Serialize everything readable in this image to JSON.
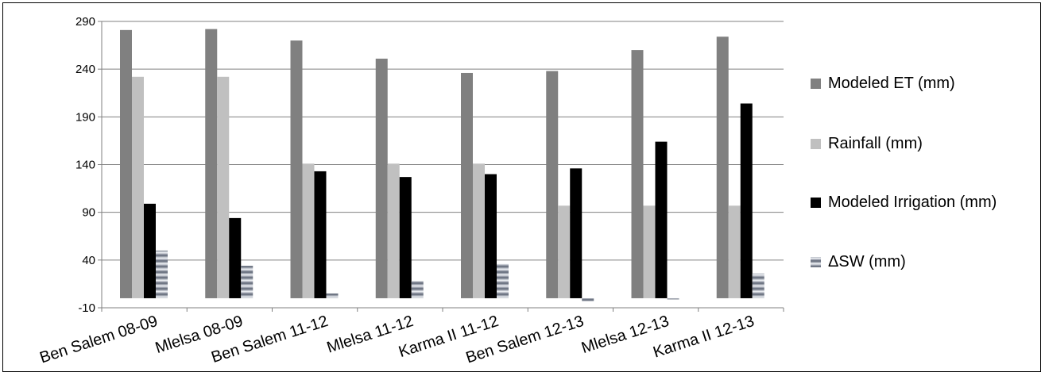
{
  "chart_data": {
    "type": "bar",
    "categories": [
      "Ben Salem 08-09",
      "Mlelsa 08-09",
      "Ben Salem 11-12",
      "Mlelsa 11-12",
      "Karma II 11-12",
      "Ben Salem 12-13",
      "Mlelsa 12-13",
      "Karma II 12-13"
    ],
    "series": [
      {
        "name": "Modeled ET (mm)",
        "color": "#808080",
        "values": [
          281,
          282,
          270,
          251,
          236,
          238,
          260,
          274
        ]
      },
      {
        "name": "Rainfall (mm)",
        "color": "#c0c0c0",
        "values": [
          232,
          232,
          141,
          141,
          141,
          97,
          97,
          97
        ]
      },
      {
        "name": "Modeled Irrigation (mm)",
        "color": "#000000",
        "values": [
          99,
          84,
          133,
          127,
          130,
          136,
          164,
          204
        ]
      },
      {
        "name": "ΔSW (mm)",
        "color": "#8890a0",
        "values": [
          50,
          34,
          5,
          18,
          36,
          -3,
          -1,
          26
        ]
      }
    ],
    "yticks": [
      "290",
      "240",
      "190",
      "140",
      "90",
      "40",
      "-10"
    ],
    "ylim": [
      -10,
      290
    ],
    "grid": true,
    "legend_position": "right",
    "title": "",
    "xlabel": "",
    "ylabel": ""
  }
}
